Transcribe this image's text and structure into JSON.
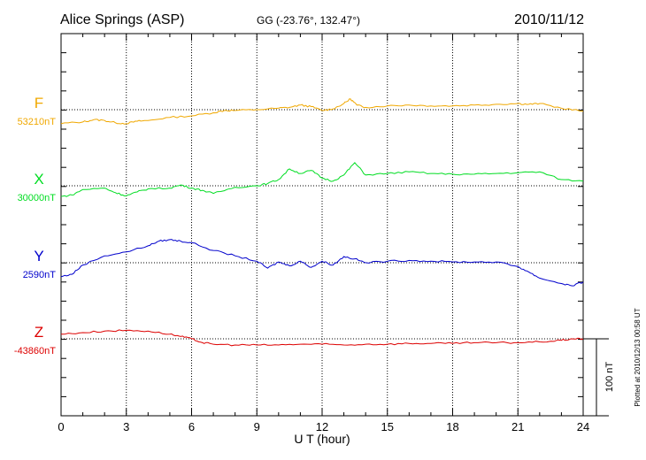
{
  "header": {
    "station": "Alice Springs (ASP)",
    "coords": "GG (-23.76°, 132.47°)",
    "date": "2010/11/12"
  },
  "footer": {
    "plotted": "Plotted at 2010/12/13 00:58 UT"
  },
  "chart_data": {
    "type": "line",
    "title": "Alice Springs (ASP)",
    "xlabel": "U T (hour)",
    "ylabel": "",
    "xlim": [
      0,
      24
    ],
    "xticks": [
      "0",
      "3",
      "6",
      "9",
      "12",
      "15",
      "18",
      "21",
      "24"
    ],
    "grid": true,
    "scale_bar": {
      "label": "100 nT",
      "value": 100
    },
    "units": "nT",
    "series": [
      {
        "name": "F",
        "baseline_label": "53210nT",
        "baseline": 53210,
        "color": "#f0a800",
        "x": [
          0,
          1,
          1.5,
          2,
          2.5,
          3,
          3.5,
          4,
          5,
          6,
          7,
          7.5,
          8,
          9,
          10,
          10.5,
          11,
          11.5,
          12,
          12.5,
          13,
          13.3,
          13.6,
          14,
          15,
          16,
          17,
          18,
          19,
          20,
          21,
          21.5,
          22,
          23,
          24
        ],
        "y": [
          -18,
          -16,
          -13,
          -14,
          -17,
          -18,
          -15,
          -14,
          -10,
          -8,
          -4,
          -1,
          -1,
          0,
          2,
          3,
          6,
          4,
          -1,
          1,
          8,
          14,
          6,
          3,
          5,
          6,
          5,
          5,
          6,
          7,
          8,
          7,
          8,
          2,
          -2
        ]
      },
      {
        "name": "X",
        "baseline_label": "30000nT",
        "baseline": 30000,
        "color": "#00dd22",
        "x": [
          0,
          0.5,
          1,
          2,
          2.5,
          3,
          3.5,
          4,
          5,
          5.5,
          6,
          6.5,
          7,
          8,
          9,
          9.5,
          10,
          10.5,
          11,
          11.5,
          12,
          12.5,
          13,
          13.5,
          14,
          15,
          16,
          17,
          18,
          19,
          20,
          21,
          22,
          23,
          24
        ],
        "y": [
          -14,
          -12,
          -5,
          -3,
          -9,
          -13,
          -8,
          -4,
          -3,
          1,
          -3,
          -6,
          -10,
          -2,
          0,
          3,
          8,
          22,
          16,
          20,
          10,
          6,
          14,
          30,
          14,
          16,
          18,
          16,
          15,
          15,
          16,
          17,
          18,
          8,
          6
        ]
      },
      {
        "name": "Y",
        "baseline_label": "2590nT",
        "baseline": 2590,
        "color": "#0000cc",
        "x": [
          0,
          0.5,
          1,
          2,
          3,
          4,
          4.5,
          5,
          5.5,
          6,
          7,
          8,
          9,
          9.5,
          10,
          10.5,
          11,
          11.5,
          12,
          12.5,
          13,
          13.5,
          14,
          15,
          16,
          17,
          18,
          19,
          20,
          21,
          21.5,
          22,
          23,
          23.5,
          24
        ],
        "y": [
          -18,
          -15,
          -3,
          9,
          14,
          22,
          28,
          30,
          28,
          26,
          16,
          9,
          2,
          -7,
          1,
          -4,
          2,
          -6,
          2,
          -3,
          8,
          5,
          0,
          2,
          3,
          2,
          1,
          1,
          1,
          -5,
          -12,
          -20,
          -27,
          -30,
          -25
        ]
      },
      {
        "name": "Z",
        "baseline_label": "-43860nT",
        "baseline": -43860,
        "color": "#dd0000",
        "x": [
          0,
          1,
          2,
          3,
          4,
          5,
          5.5,
          6,
          6.5,
          7,
          8,
          9,
          10,
          11,
          12,
          13,
          14,
          15,
          16,
          17,
          18,
          19,
          20,
          21,
          22,
          23,
          23.5,
          24
        ],
        "y": [
          6,
          8,
          10,
          11,
          10,
          6,
          3,
          0,
          -5,
          -7,
          -8,
          -8,
          -8,
          -7,
          -7,
          -8,
          -7,
          -7,
          -6,
          -6,
          -6,
          -5,
          -5,
          -5,
          -4,
          -2,
          0,
          0
        ]
      }
    ]
  }
}
